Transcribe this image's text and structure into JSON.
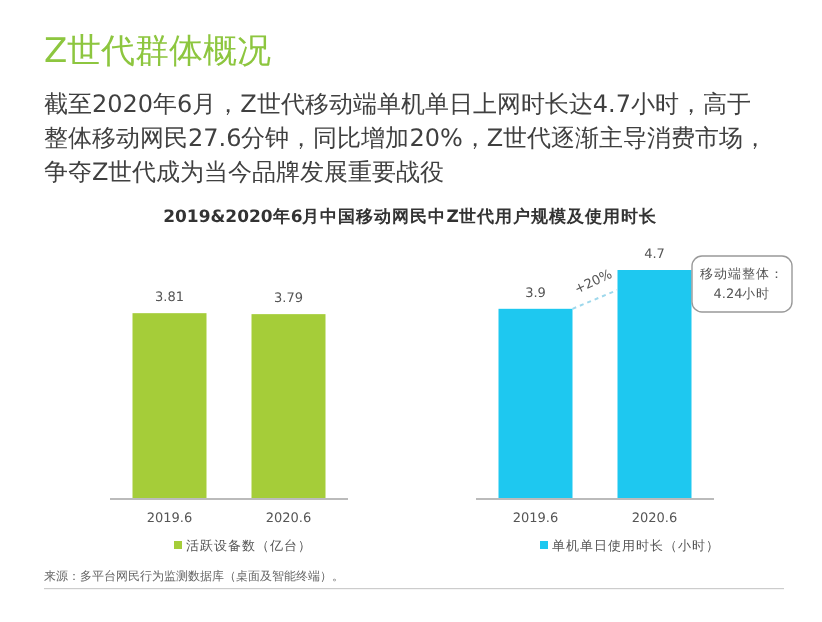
{
  "chart_data": [
    {
      "type": "other",
      "title": "Z世代群体概况",
      "subtitle": "截至2020年6月，Z世代移动端单机单日上网时长达4.7小时，高于整体移动网民27.6分钟，同比增加20%，Z世代逐渐主导消费市场，争夺Z世代成为当今品牌发展重要战役",
      "annotations": [
        "2019&2020年6月中国移动网民中Z世代用户规模及使用时长",
        "来源：多平台网民行为监测数据库（桌面及智能终端）。"
      ]
    },
    {
      "type": "bar",
      "categories": [
        "2019.6",
        "2020.6"
      ],
      "data_labels": true,
      "legend": "bottom",
      "series": [
        {
          "name": "活跃设备数（亿台）",
          "color": "#a5cd39",
          "values": [
            3.81,
            3.79
          ]
        }
      ]
    },
    {
      "type": "bar",
      "categories": [
        "2019.6",
        "2020.6"
      ],
      "data_labels": true,
      "legend": "bottom",
      "annotations": [
        "+20%",
        "移动端整体：\n4.24小时"
      ],
      "series": [
        {
          "name": "单机单日使用时长（小时）",
          "color": "#1ec8f0",
          "values": [
            3.9,
            4.7
          ]
        }
      ]
    }
  ]
}
